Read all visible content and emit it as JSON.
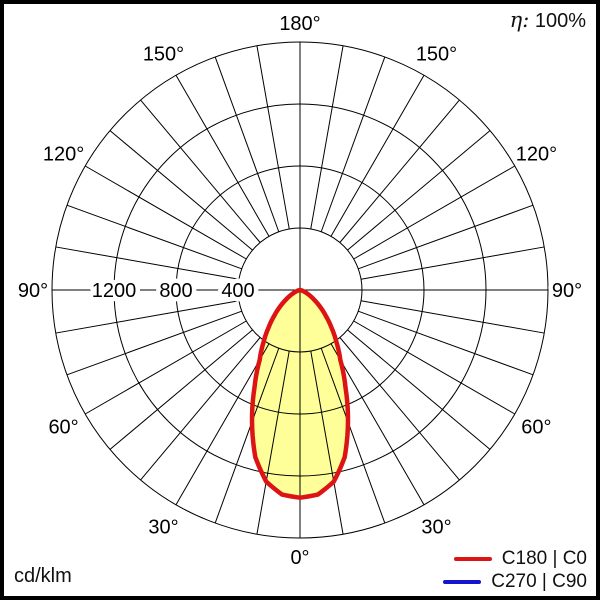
{
  "header": {
    "efficiency_symbol": "η:",
    "efficiency_value": "100%"
  },
  "footer": {
    "unit_label": "cd/klm"
  },
  "legend": {
    "items": [
      {
        "label": "C180 | C0",
        "color": "#dd1414"
      },
      {
        "label": "C270 | C90",
        "color": "#1414cc"
      }
    ]
  },
  "chart_data": {
    "type": "polar",
    "subtype": "photometric-luminous-intensity-distribution",
    "units": "cd/klm",
    "efficiency_eta": "100%",
    "angle_tick_labels_deg": [
      0,
      30,
      60,
      90,
      120,
      150,
      180
    ],
    "angle_label_suffix": "°",
    "spoke_step_deg": 10,
    "radial_tick_labels": [
      400,
      800,
      1200
    ],
    "radial_axis_max": 1600,
    "grid_color": "#000000",
    "legend_position": "bottom-right",
    "series": [
      {
        "name": "C180 | C0",
        "color": "#dd1414",
        "fill_color": "#ffff99",
        "symmetric": true,
        "gamma_deg": [
          0,
          5,
          10,
          15,
          20,
          25,
          30,
          35,
          40,
          45,
          50,
          55,
          60,
          65,
          70,
          75,
          80,
          85,
          90
        ],
        "intensity": [
          1340,
          1325,
          1255,
          1115,
          905,
          695,
          520,
          410,
          315,
          235,
          170,
          115,
          75,
          45,
          25,
          12,
          5,
          1,
          0
        ]
      },
      {
        "name": "C270 | C90",
        "color": "#1414cc",
        "curve_visible_in_plot": false
      }
    ]
  }
}
